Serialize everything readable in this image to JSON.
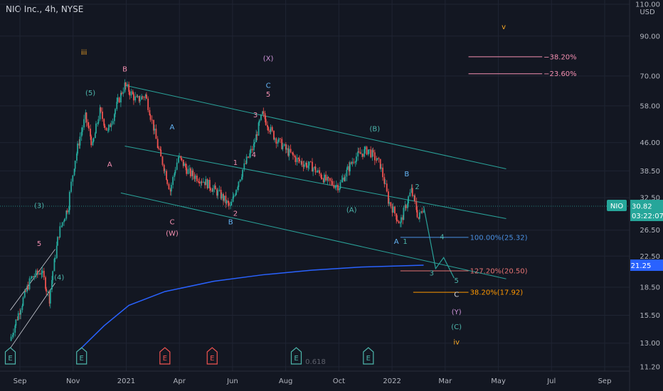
{
  "header": {
    "title": "NIO Inc., 4h, NYSE"
  },
  "colors": {
    "bg": "#131722",
    "grid": "#1f2433",
    "candle_up": "#26a69a",
    "candle_down": "#ef5350",
    "channel": "#2aa39a",
    "ma": "#2962ff",
    "pink": "#f48fb1",
    "green": "#4db6ac",
    "blue": "#64b5f6",
    "yellow": "#f9a825",
    "orange": "#ff9800",
    "violet": "#ce93d8"
  },
  "chart_data": {
    "type": "candlestick",
    "symbol": "NIO",
    "price_axis": {
      "unit": "USD",
      "scale": "log",
      "ticks": [
        "110.00",
        "90.00",
        "70.00",
        "58.00",
        "46.00",
        "38.50",
        "32.50",
        "26.50",
        "22.50",
        "18.50",
        "15.50",
        "13.00",
        "11.20"
      ]
    },
    "time_axis": {
      "ticks": [
        "Sep",
        "Nov",
        "2021",
        "Apr",
        "Jun",
        "Aug",
        "Oct",
        "2022",
        "Mar",
        "May",
        "Jul",
        "Sep"
      ]
    },
    "last_price": "30.82",
    "countdown": "03:22:07",
    "ma_value": "21.25",
    "price_path": [
      [
        "2020-08-20",
        13.2
      ],
      [
        "2020-09-01",
        16
      ],
      [
        "2020-09-15",
        19.5
      ],
      [
        "2020-09-28",
        20.5
      ],
      [
        "2020-10-08",
        17.2
      ],
      [
        "2020-10-20",
        26
      ],
      [
        "2020-11-01",
        31
      ],
      [
        "2020-11-08",
        40
      ],
      [
        "2020-11-22",
        54
      ],
      [
        "2020-12-01",
        45
      ],
      [
        "2020-12-10",
        56
      ],
      [
        "2020-12-20",
        49
      ],
      [
        "2021-01-10",
        66
      ],
      [
        "2021-01-25",
        60
      ],
      [
        "2021-02-05",
        62
      ],
      [
        "2021-02-20",
        45
      ],
      [
        "2021-03-08",
        34
      ],
      [
        "2021-03-18",
        42
      ],
      [
        "2021-04-01",
        38
      ],
      [
        "2021-04-20",
        36
      ],
      [
        "2021-05-10",
        33
      ],
      [
        "2021-05-22",
        30.5
      ],
      [
        "2021-06-05",
        38
      ],
      [
        "2021-06-20",
        45
      ],
      [
        "2021-07-01",
        55
      ],
      [
        "2021-07-15",
        48
      ],
      [
        "2021-07-30",
        44
      ],
      [
        "2021-08-15",
        41
      ],
      [
        "2021-09-01",
        39.5
      ],
      [
        "2021-09-20",
        36
      ],
      [
        "2021-10-05",
        35
      ],
      [
        "2021-10-25",
        42
      ],
      [
        "2021-11-10",
        44
      ],
      [
        "2021-11-25",
        40
      ],
      [
        "2021-12-05",
        32
      ],
      [
        "2021-12-20",
        27.5
      ],
      [
        "2022-01-03",
        34
      ],
      [
        "2022-01-12",
        28.5
      ],
      [
        "2022-01-18",
        30.8
      ]
    ],
    "moving_average": [
      [
        "2020-11-15",
        12.5
      ],
      [
        "2020-12-15",
        14.5
      ],
      [
        "2021-01-15",
        16.5
      ],
      [
        "2021-03-01",
        18
      ],
      [
        "2021-05-01",
        19.2
      ],
      [
        "2021-07-01",
        20
      ],
      [
        "2021-09-01",
        20.6
      ],
      [
        "2021-11-01",
        21
      ],
      [
        "2022-01-18",
        21.25
      ]
    ],
    "channel_lines": [
      {
        "from": [
          "2021-01-10",
          66
        ],
        "to": [
          "2022-05-01",
          39
        ]
      },
      {
        "from": [
          "2021-01-10",
          45
        ],
        "to": [
          "2022-05-01",
          28.5
        ]
      },
      {
        "from": [
          "2021-01-05",
          33.5
        ],
        "to": [
          "2022-05-01",
          19.5
        ]
      }
    ],
    "rising_wedge": [
      {
        "from": [
          "2020-08-20",
          16
        ],
        "to": [
          "2020-10-15",
          23.5
        ]
      },
      {
        "from": [
          "2020-08-20",
          12.6
        ],
        "to": [
          "2020-10-15",
          19
        ]
      }
    ],
    "projection_path": [
      [
        "2022-01-18",
        30.8
      ],
      [
        "2022-02-02",
        20.8
      ],
      [
        "2022-02-12",
        22.3
      ],
      [
        "2022-02-25",
        19.6
      ]
    ],
    "fib_levels": [
      {
        "label": "−38.20%",
        "price": 79,
        "from": "2022-03-15",
        "to": "2022-06-15",
        "color": "#f48fb1"
      },
      {
        "label": "−23.60%",
        "price": 71,
        "from": "2022-03-15",
        "to": "2022-06-15",
        "color": "#f48fb1"
      },
      {
        "label": "100.00%(25.32)",
        "price": 25.32,
        "from": "2021-12-20",
        "to": "2022-03-15",
        "color": "#4a90e2"
      },
      {
        "label": "127.20%(20.50)",
        "price": 20.5,
        "from": "2021-12-20",
        "to": "2022-03-15",
        "color": "#e57373"
      },
      {
        "label": "38.20%(17.92)",
        "price": 17.92,
        "from": "2022-01-05",
        "to": "2022-03-15",
        "color": "#ff9800"
      }
    ],
    "wave_labels": [
      {
        "text": "iii",
        "date": "2020-11-20",
        "price": 80,
        "color": "#f9a825"
      },
      {
        "text": "(5)",
        "date": "2020-11-28",
        "price": 62,
        "color": "#4db6ac"
      },
      {
        "text": "(3)",
        "date": "2020-09-25",
        "price": 30.5,
        "color": "#4db6ac"
      },
      {
        "text": "5",
        "date": "2020-09-25",
        "price": 24,
        "color": "#f48fb1"
      },
      {
        "text": "(4)",
        "date": "2020-10-20",
        "price": 19.4,
        "color": "#4db6ac"
      },
      {
        "text": "A",
        "date": "2020-12-22",
        "price": 39.5,
        "color": "#f48fb1"
      },
      {
        "text": "B",
        "date": "2021-01-10",
        "price": 72,
        "color": "#f48fb1"
      },
      {
        "text": "A",
        "date": "2021-03-10",
        "price": 50,
        "color": "#64b5f6"
      },
      {
        "text": "C",
        "date": "2021-03-10",
        "price": 27.5,
        "color": "#f48fb1"
      },
      {
        "text": "(W)",
        "date": "2021-03-10",
        "price": 25.6,
        "color": "#f48fb1"
      },
      {
        "text": "B",
        "date": "2021-05-22",
        "price": 27.5,
        "color": "#64b5f6"
      },
      {
        "text": "2",
        "date": "2021-05-28",
        "price": 29,
        "color": "#f48fb1"
      },
      {
        "text": "1",
        "date": "2021-05-28",
        "price": 40,
        "color": "#f48fb1"
      },
      {
        "text": "4",
        "date": "2021-06-20",
        "price": 42,
        "color": "#f48fb1"
      },
      {
        "text": "3",
        "date": "2021-06-22",
        "price": 54,
        "color": "#f48fb1"
      },
      {
        "text": "(X)",
        "date": "2021-07-08",
        "price": 77,
        "color": "#ce93d8"
      },
      {
        "text": "C",
        "date": "2021-07-08",
        "price": 65,
        "color": "#64b5f6"
      },
      {
        "text": "5",
        "date": "2021-07-08",
        "price": 61.5,
        "color": "#f48fb1"
      },
      {
        "text": "(A)",
        "date": "2021-10-20",
        "price": 29.7,
        "color": "#4db6ac"
      },
      {
        "text": "(B)",
        "date": "2021-11-18",
        "price": 49.5,
        "color": "#4db6ac"
      },
      {
        "text": "B",
        "date": "2021-12-28",
        "price": 37.2,
        "color": "#64b5f6"
      },
      {
        "text": "2",
        "date": "2022-01-10",
        "price": 34.3,
        "color": "#4db6ac"
      },
      {
        "text": "A",
        "date": "2021-12-15",
        "price": 24.3,
        "color": "#64b5f6"
      },
      {
        "text": "1",
        "date": "2021-12-26",
        "price": 24.3,
        "color": "#4db6ac"
      },
      {
        "text": "4",
        "date": "2022-02-10",
        "price": 25,
        "color": "#4db6ac"
      },
      {
        "text": "3",
        "date": "2022-01-28",
        "price": 19.9,
        "color": "#4db6ac"
      },
      {
        "text": "5",
        "date": "2022-02-28",
        "price": 19,
        "color": "#4db6ac"
      },
      {
        "text": "C",
        "date": "2022-02-28",
        "price": 17.4,
        "color": "#d1d4dc"
      },
      {
        "text": "(Y)",
        "date": "2022-02-28",
        "price": 15.6,
        "color": "#ce93d8"
      },
      {
        "text": "(C)",
        "date": "2022-02-28",
        "price": 14.2,
        "color": "#4db6ac"
      },
      {
        "text": "iv",
        "date": "2022-02-28",
        "price": 12.9,
        "color": "#f9a825"
      },
      {
        "text": "v",
        "date": "2022-04-28",
        "price": 94,
        "color": "#f9a825"
      }
    ],
    "event_markers": [
      {
        "text": "E",
        "date": "2020-08-20",
        "color": "#4db6ac"
      },
      {
        "text": "E",
        "date": "2020-11-17",
        "color": "#4db6ac"
      },
      {
        "text": "E",
        "date": "2021-03-01",
        "color": "#ef5350"
      },
      {
        "text": "E",
        "date": "2021-04-29",
        "color": "#ef5350"
      },
      {
        "text": "E",
        "date": "2021-08-12",
        "color": "#4db6ac"
      },
      {
        "text": "E",
        "date": "2021-11-10",
        "color": "#4db6ac"
      }
    ],
    "bottom_annotation": {
      "text": "0.618",
      "date": "2021-09-05"
    }
  }
}
